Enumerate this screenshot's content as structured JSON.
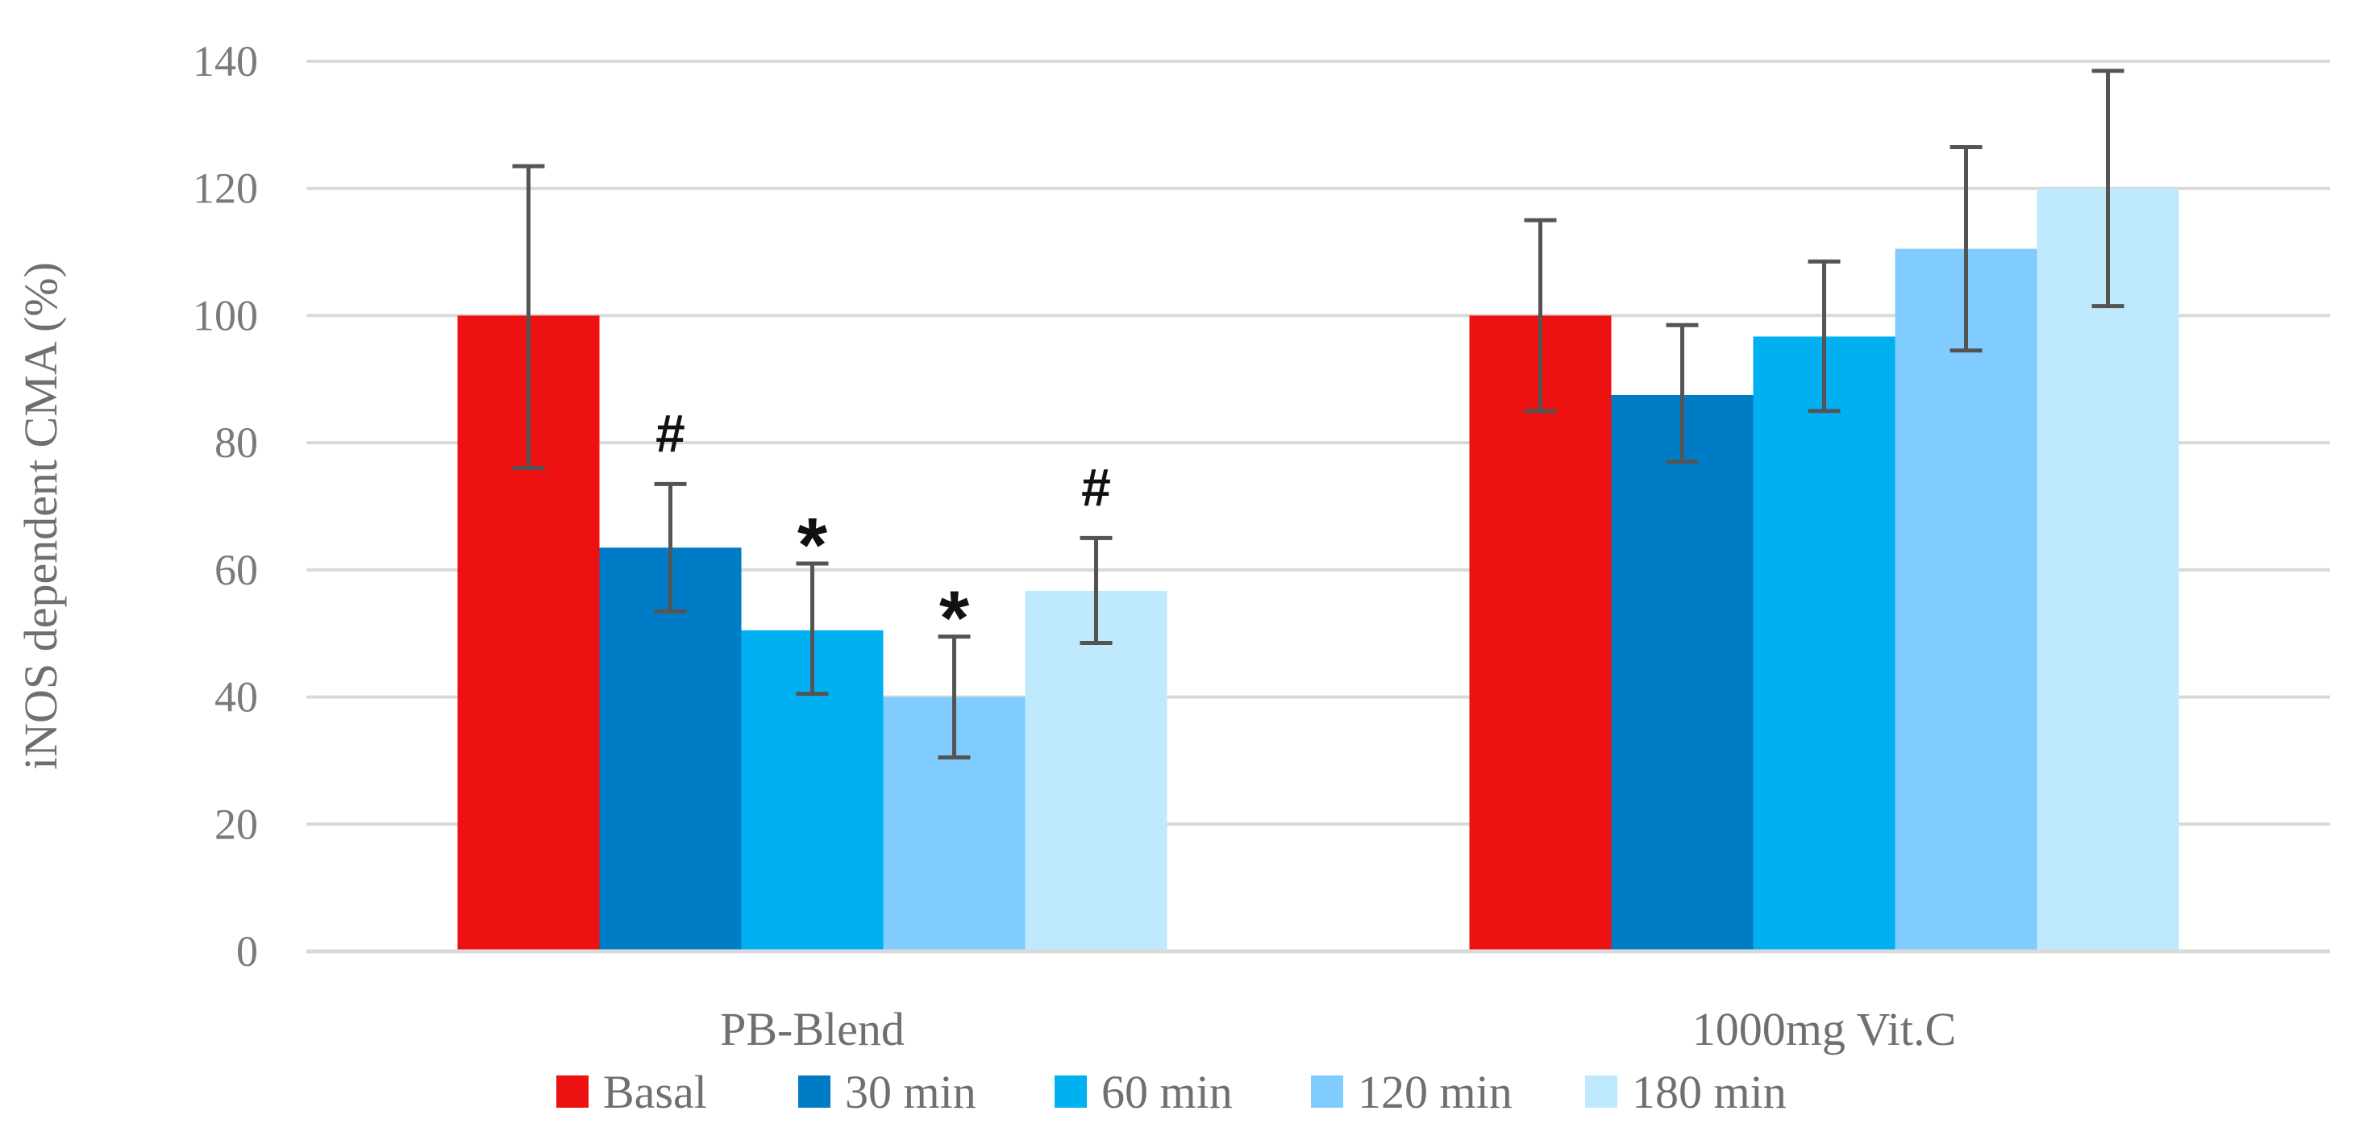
{
  "chart_data": {
    "type": "bar",
    "title": "",
    "xlabel": "",
    "ylabel": "iNOS dependent CMA (%)",
    "ylim": [
      0,
      140
    ],
    "yticks": [
      0,
      20,
      40,
      60,
      80,
      100,
      120,
      140
    ],
    "grid": true,
    "legend_position": "bottom",
    "categories": [
      "PB-Blend",
      "1000mg Vit.C"
    ],
    "series": [
      {
        "name": "Basal",
        "color": "#ee1111",
        "values": [
          100,
          100
        ],
        "err_low": [
          76,
          85
        ],
        "err_high": [
          123.5,
          115
        ]
      },
      {
        "name": "30 min",
        "color": "#007cc7",
        "values": [
          63.5,
          87.5
        ],
        "err_low": [
          53.5,
          77
        ],
        "err_high": [
          73.5,
          98.5
        ]
      },
      {
        "name": "60 min",
        "color": "#00b0f0",
        "values": [
          50.5,
          96.7
        ],
        "err_low": [
          40.5,
          85
        ],
        "err_high": [
          61,
          108.5
        ]
      },
      {
        "name": "120 min",
        "color": "#80ccff",
        "values": [
          40,
          110.5
        ],
        "err_low": [
          30.5,
          94.5
        ],
        "err_high": [
          49.5,
          126.5
        ]
      },
      {
        "name": "180 min",
        "color": "#bfe9fd",
        "values": [
          56.7,
          120
        ],
        "err_low": [
          48.5,
          101.5
        ],
        "err_high": [
          65,
          138.5
        ]
      }
    ],
    "annotations": [
      {
        "category": "PB-Blend",
        "series": "30 min",
        "text": "#"
      },
      {
        "category": "PB-Blend",
        "series": "60 min",
        "text": "*"
      },
      {
        "category": "PB-Blend",
        "series": "120 min",
        "text": "*"
      },
      {
        "category": "PB-Blend",
        "series": "180 min",
        "text": "#"
      }
    ]
  }
}
